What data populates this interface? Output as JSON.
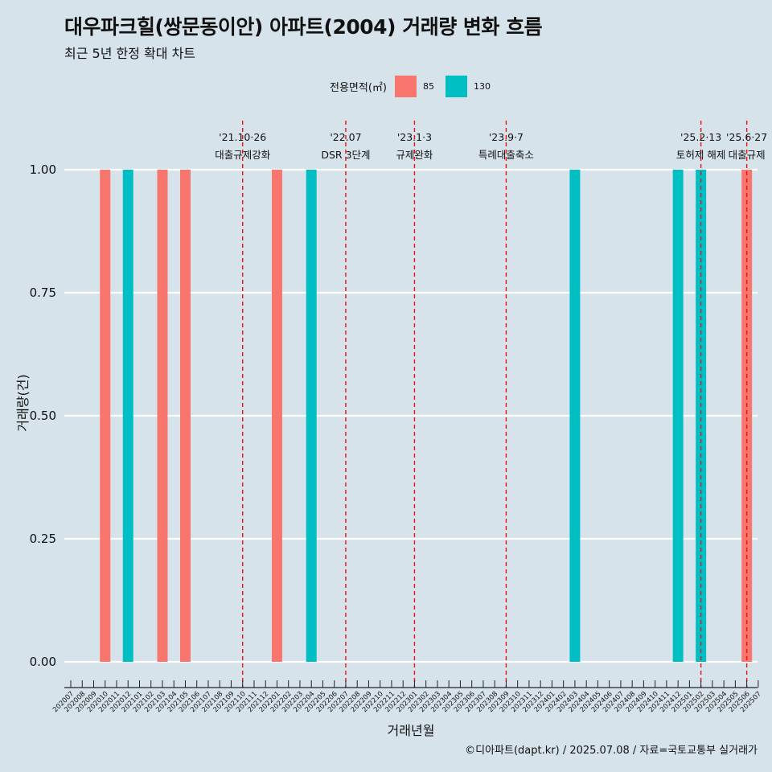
{
  "chart_data": {
    "type": "bar",
    "title": "대우파크힐(쌍문동이안) 아파트(2004) 거래량 변화 흐름",
    "subtitle": "최근 5년 한정 확대 차트",
    "xlabel": "거래년월",
    "ylabel": "거래량(건)",
    "ylim": [
      0,
      1
    ],
    "yticks": [
      "0.00",
      "0.25",
      "0.50",
      "0.75",
      "1.00"
    ],
    "grid": true,
    "legend": {
      "title": "전용면적(㎡)",
      "position": "top",
      "items": [
        {
          "label": "85",
          "color": "#f8766d"
        },
        {
          "label": "130",
          "color": "#00bfc4"
        }
      ]
    },
    "categories": [
      "202007",
      "202008",
      "202009",
      "202010",
      "202011",
      "202012",
      "202101",
      "202102",
      "202103",
      "202104",
      "202105",
      "202106",
      "202107",
      "202108",
      "202109",
      "202110",
      "202111",
      "202112",
      "202201",
      "202202",
      "202203",
      "202204",
      "202205",
      "202206",
      "202207",
      "202208",
      "202209",
      "202210",
      "202211",
      "202212",
      "202301",
      "202302",
      "202303",
      "202304",
      "202305",
      "202306",
      "202307",
      "202308",
      "202309",
      "202310",
      "202311",
      "202312",
      "202401",
      "202402",
      "202403",
      "202404",
      "202405",
      "202406",
      "202407",
      "202408",
      "202409",
      "202410",
      "202411",
      "202412",
      "202501",
      "202502",
      "202503",
      "202504",
      "202505",
      "202506",
      "202507"
    ],
    "series": [
      {
        "name": "85",
        "color": "#f8766d",
        "points": [
          {
            "x": "202010",
            "y": 1
          },
          {
            "x": "202103",
            "y": 1
          },
          {
            "x": "202105",
            "y": 1
          },
          {
            "x": "202201",
            "y": 1
          },
          {
            "x": "202506",
            "y": 1
          }
        ]
      },
      {
        "name": "130",
        "color": "#00bfc4",
        "points": [
          {
            "x": "202012",
            "y": 1
          },
          {
            "x": "202204",
            "y": 1
          },
          {
            "x": "202403",
            "y": 1
          },
          {
            "x": "202412",
            "y": 1
          },
          {
            "x": "202502",
            "y": 1
          }
        ]
      }
    ],
    "annotations": [
      {
        "x": "202110",
        "date": "'21.10·26",
        "label": "대출규제강화"
      },
      {
        "x": "202207",
        "date": "'22.07",
        "label": "DSR 3단계"
      },
      {
        "x": "202301",
        "date": "'23.1·3",
        "label": "규제완화"
      },
      {
        "x": "202309",
        "date": "'23.9·7",
        "label": "특례대출축소"
      },
      {
        "x": "202502",
        "date": "'25.2·13",
        "label": "토허제 해제"
      },
      {
        "x": "202506",
        "date": "'25.6·27",
        "label": "대출규제"
      }
    ],
    "caption": "©디아파트(dapt.kr) / 2025.07.08 / 자료=국토교통부 실거래가"
  }
}
